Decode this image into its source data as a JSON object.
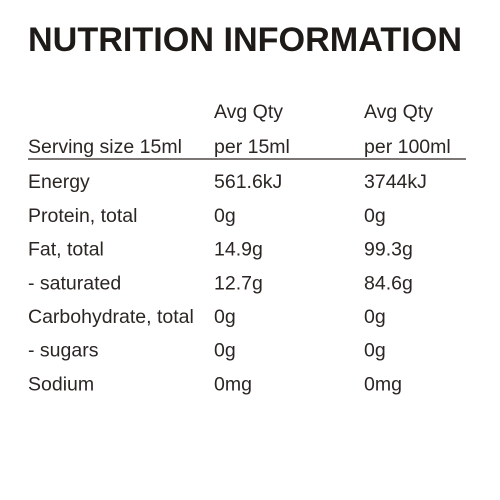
{
  "title": "NUTRITION INFORMATION",
  "table": {
    "serving": "Serving size 15ml",
    "columns": [
      {
        "line1": "Avg Qty",
        "line2": "per 15ml"
      },
      {
        "line1": "Avg Qty",
        "line2": "per 100ml"
      }
    ],
    "rows": [
      [
        "Energy",
        "561.6kJ",
        "3744kJ"
      ],
      [
        "Protein, total",
        "0g",
        "0g"
      ],
      [
        "Fat, total",
        "14.9g",
        "99.3g"
      ],
      [
        "- saturated",
        "12.7g",
        "84.6g"
      ],
      [
        "Carbohydrate, total",
        "0g",
        "0g"
      ],
      [
        "- sugars",
        "0g",
        "0g"
      ],
      [
        "Sodium",
        "0mg",
        "0mg"
      ]
    ]
  }
}
